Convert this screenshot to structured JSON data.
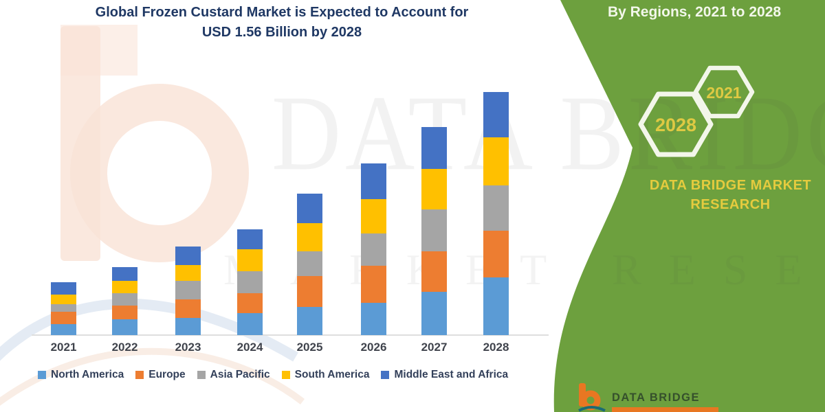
{
  "title": {
    "line1": "Global Frozen Custard Market is Expected to Account for",
    "line2": "USD 1.56 Billion by 2028"
  },
  "side_panel": {
    "heading": "By Regions, 2021 to 2028",
    "hexagon_small_label": "2021",
    "hexagon_large_label": "2028",
    "brand_line1": "DATA BRIDGE MARKET",
    "brand_line2": "RESEARCH",
    "logo_text": "DATA BRIDGE",
    "colors": {
      "panel_green": "#6da03e",
      "accent_yellow": "#dfc943",
      "hex_outline": "#f3f6ea",
      "logo_orange": "#e87722"
    }
  },
  "watermark": {
    "line1": "DATA BRIDGE",
    "line2": "MARKET RESEARCH"
  },
  "chart_data": {
    "type": "bar",
    "stacked": true,
    "title": "Global Frozen Custard Market is Expected to Account for USD 1.56 Billion by 2028",
    "unit": "USD Billion",
    "values_estimated_from_pixels": true,
    "categories": [
      "2021",
      "2022",
      "2023",
      "2024",
      "2025",
      "2026",
      "2027",
      "2028"
    ],
    "series": [
      {
        "name": "North America",
        "color": "#5b9bd5",
        "values": [
          0.07,
          0.1,
          0.11,
          0.14,
          0.18,
          0.21,
          0.28,
          0.37
        ]
      },
      {
        "name": "Europe",
        "color": "#ed7d31",
        "values": [
          0.08,
          0.09,
          0.12,
          0.13,
          0.2,
          0.24,
          0.26,
          0.3
        ]
      },
      {
        "name": "Asia Pacific",
        "color": "#a5a5a5",
        "values": [
          0.05,
          0.08,
          0.12,
          0.14,
          0.16,
          0.21,
          0.27,
          0.29
        ]
      },
      {
        "name": "South America",
        "color": "#ffc000",
        "values": [
          0.06,
          0.08,
          0.1,
          0.14,
          0.18,
          0.22,
          0.26,
          0.31
        ]
      },
      {
        "name": "Middle East and Africa",
        "color": "#4472c4",
        "values": [
          0.08,
          0.09,
          0.12,
          0.13,
          0.19,
          0.23,
          0.27,
          0.29
        ]
      }
    ],
    "totals": [
      0.34,
      0.44,
      0.57,
      0.68,
      0.91,
      1.11,
      1.34,
      1.56
    ],
    "ylim": [
      0,
      1.6
    ],
    "y_axis_shown": false,
    "grid": false,
    "legend_position": "bottom"
  }
}
